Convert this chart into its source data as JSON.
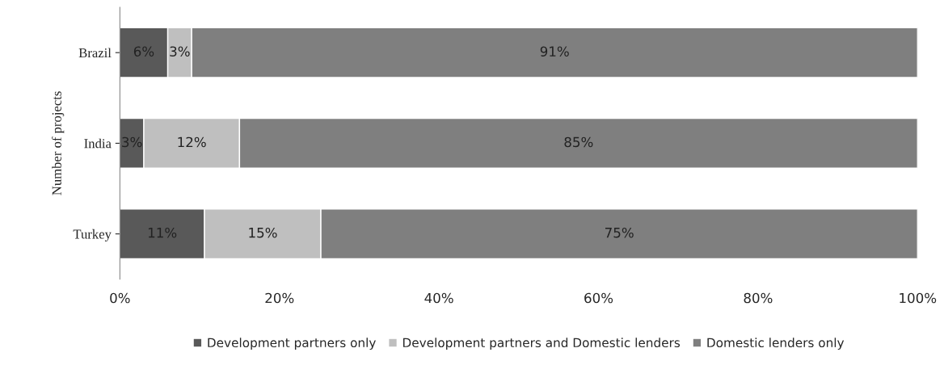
{
  "chart_data": {
    "type": "bar",
    "orientation": "horizontal",
    "stacked": true,
    "ylabel": "Number of projects",
    "categories": [
      "Brazil",
      "India",
      "Turkey"
    ],
    "series": [
      {
        "name": "Development partners only",
        "color": "#595959",
        "values": [
          6,
          3,
          10.6
        ],
        "value_labels": [
          "6%",
          "3%",
          "11%"
        ]
      },
      {
        "name": "Development partners and Domestic lenders",
        "color": "#bfbfbf",
        "values": [
          3,
          12,
          14.6
        ],
        "value_labels": [
          "3%",
          "12%",
          "15%"
        ]
      },
      {
        "name": "Domestic lenders only",
        "color": "#7f7f7f",
        "values": [
          91,
          85,
          74.8
        ],
        "value_labels": [
          "91%",
          "85%",
          "75%"
        ]
      }
    ],
    "xlim": [
      0,
      100
    ],
    "xticks": [
      {
        "value": 0,
        "label": "0%"
      },
      {
        "value": 20,
        "label": "20%"
      },
      {
        "value": 40,
        "label": "40%"
      },
      {
        "value": 60,
        "label": "60%"
      },
      {
        "value": 80,
        "label": "80%"
      },
      {
        "value": 100,
        "label": "100%"
      }
    ],
    "legend": "bottom",
    "grid": false
  }
}
